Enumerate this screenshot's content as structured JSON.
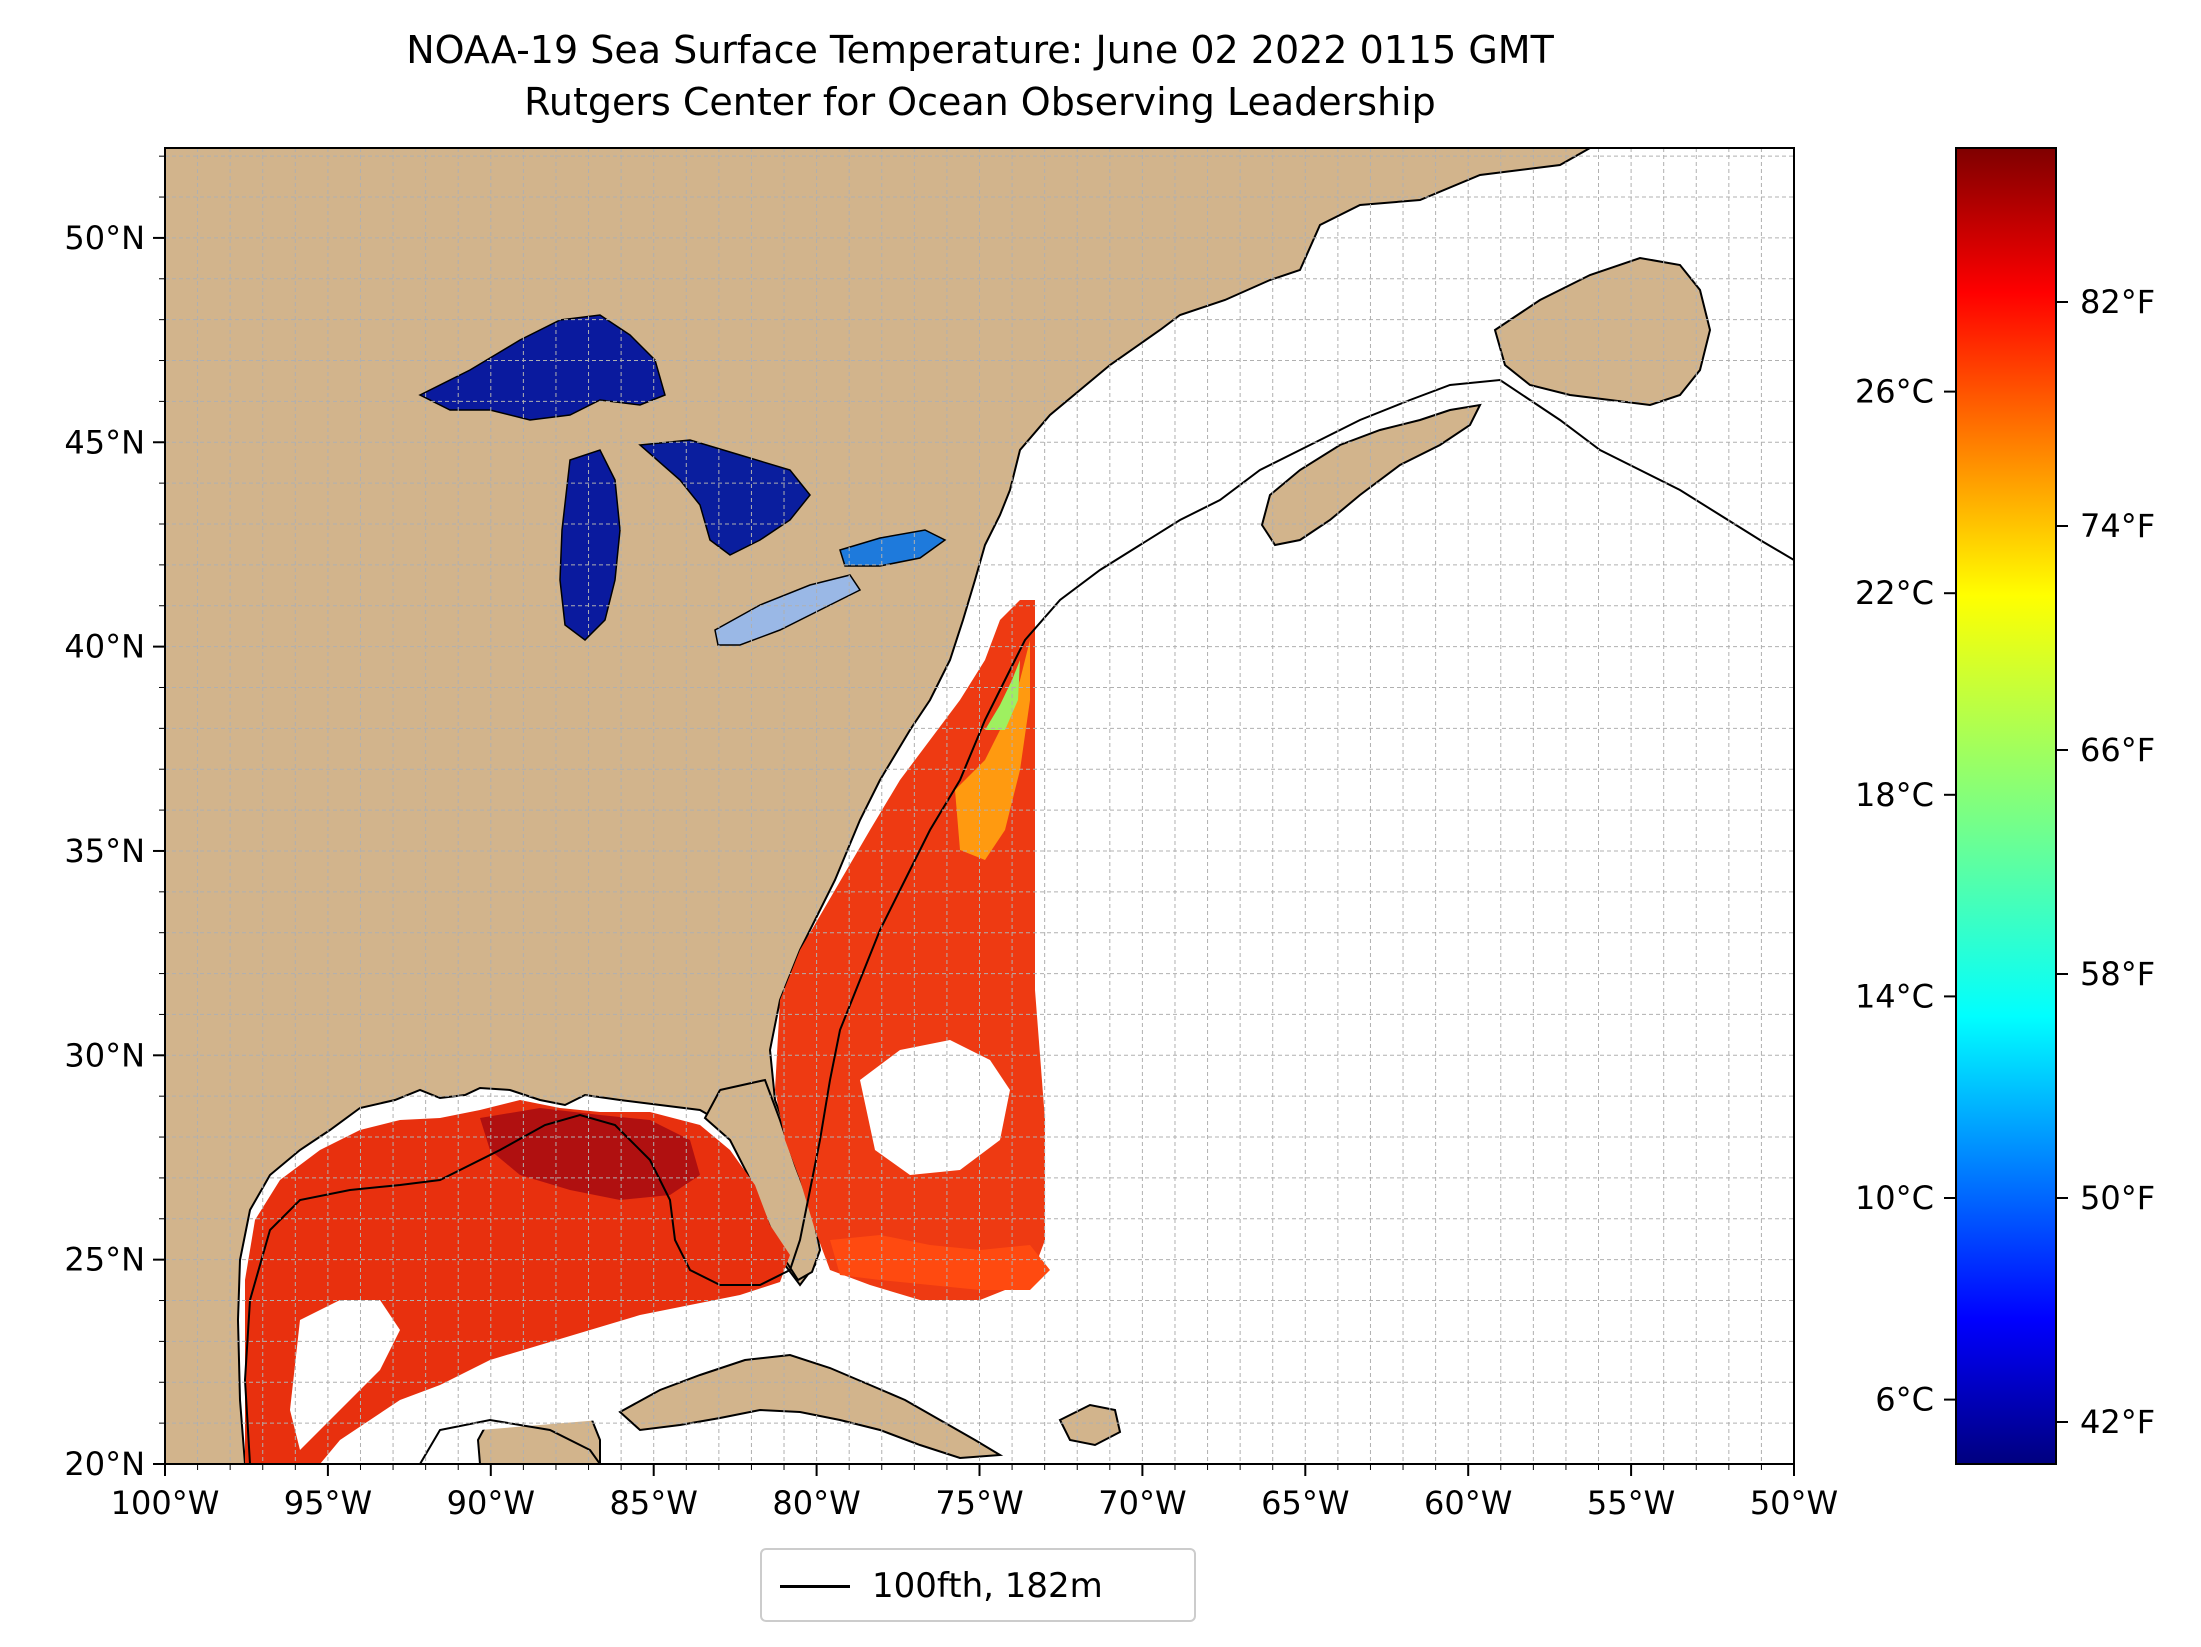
{
  "title": {
    "line1": "NOAA-19 Sea Surface Temperature: June 02 2022 0115 GMT",
    "line2": "Rutgers Center for Ocean Observing Leadership"
  },
  "map": {
    "lon_range": [
      -100,
      -50
    ],
    "lat_range": [
      20,
      52.2
    ],
    "x_ticks": [
      {
        "lon": -100,
        "label": "100°W"
      },
      {
        "lon": -95,
        "label": "95°W"
      },
      {
        "lon": -90,
        "label": "90°W"
      },
      {
        "lon": -85,
        "label": "85°W"
      },
      {
        "lon": -80,
        "label": "80°W"
      },
      {
        "lon": -75,
        "label": "75°W"
      },
      {
        "lon": -70,
        "label": "70°W"
      },
      {
        "lon": -65,
        "label": "65°W"
      },
      {
        "lon": -60,
        "label": "60°W"
      },
      {
        "lon": -55,
        "label": "55°W"
      },
      {
        "lon": -50,
        "label": "50°W"
      }
    ],
    "y_ticks": [
      {
        "lat": 20,
        "label": "20°N"
      },
      {
        "lat": 25,
        "label": "25°N"
      },
      {
        "lat": 30,
        "label": "30°N"
      },
      {
        "lat": 35,
        "label": "35°N"
      },
      {
        "lat": 40,
        "label": "40°N"
      },
      {
        "lat": 45,
        "label": "45°N"
      },
      {
        "lat": 50,
        "label": "50°N"
      }
    ],
    "colors": {
      "land": "#d2b48c",
      "lakes": "#9ab8e6",
      "ocean": "#ffffff",
      "border": "#000000",
      "grid": "#b0b0b0"
    }
  },
  "colorbar": {
    "colormap": "jet",
    "fahrenheit_range": [
      40.5,
      87.5
    ],
    "fahrenheit_ticks": [
      {
        "value": 42,
        "label": "42°F"
      },
      {
        "value": 50,
        "label": "50°F"
      },
      {
        "value": 58,
        "label": "58°F"
      },
      {
        "value": 66,
        "label": "66°F"
      },
      {
        "value": 74,
        "label": "74°F"
      },
      {
        "value": 82,
        "label": "82°F"
      }
    ],
    "celsius_ticks": [
      {
        "value": 6,
        "label": "6°C"
      },
      {
        "value": 10,
        "label": "10°C"
      },
      {
        "value": 14,
        "label": "14°C"
      },
      {
        "value": 18,
        "label": "18°C"
      },
      {
        "value": 22,
        "label": "22°C"
      },
      {
        "value": 26,
        "label": "26°C"
      }
    ]
  },
  "legend": {
    "label": "100fth, 182m"
  }
}
